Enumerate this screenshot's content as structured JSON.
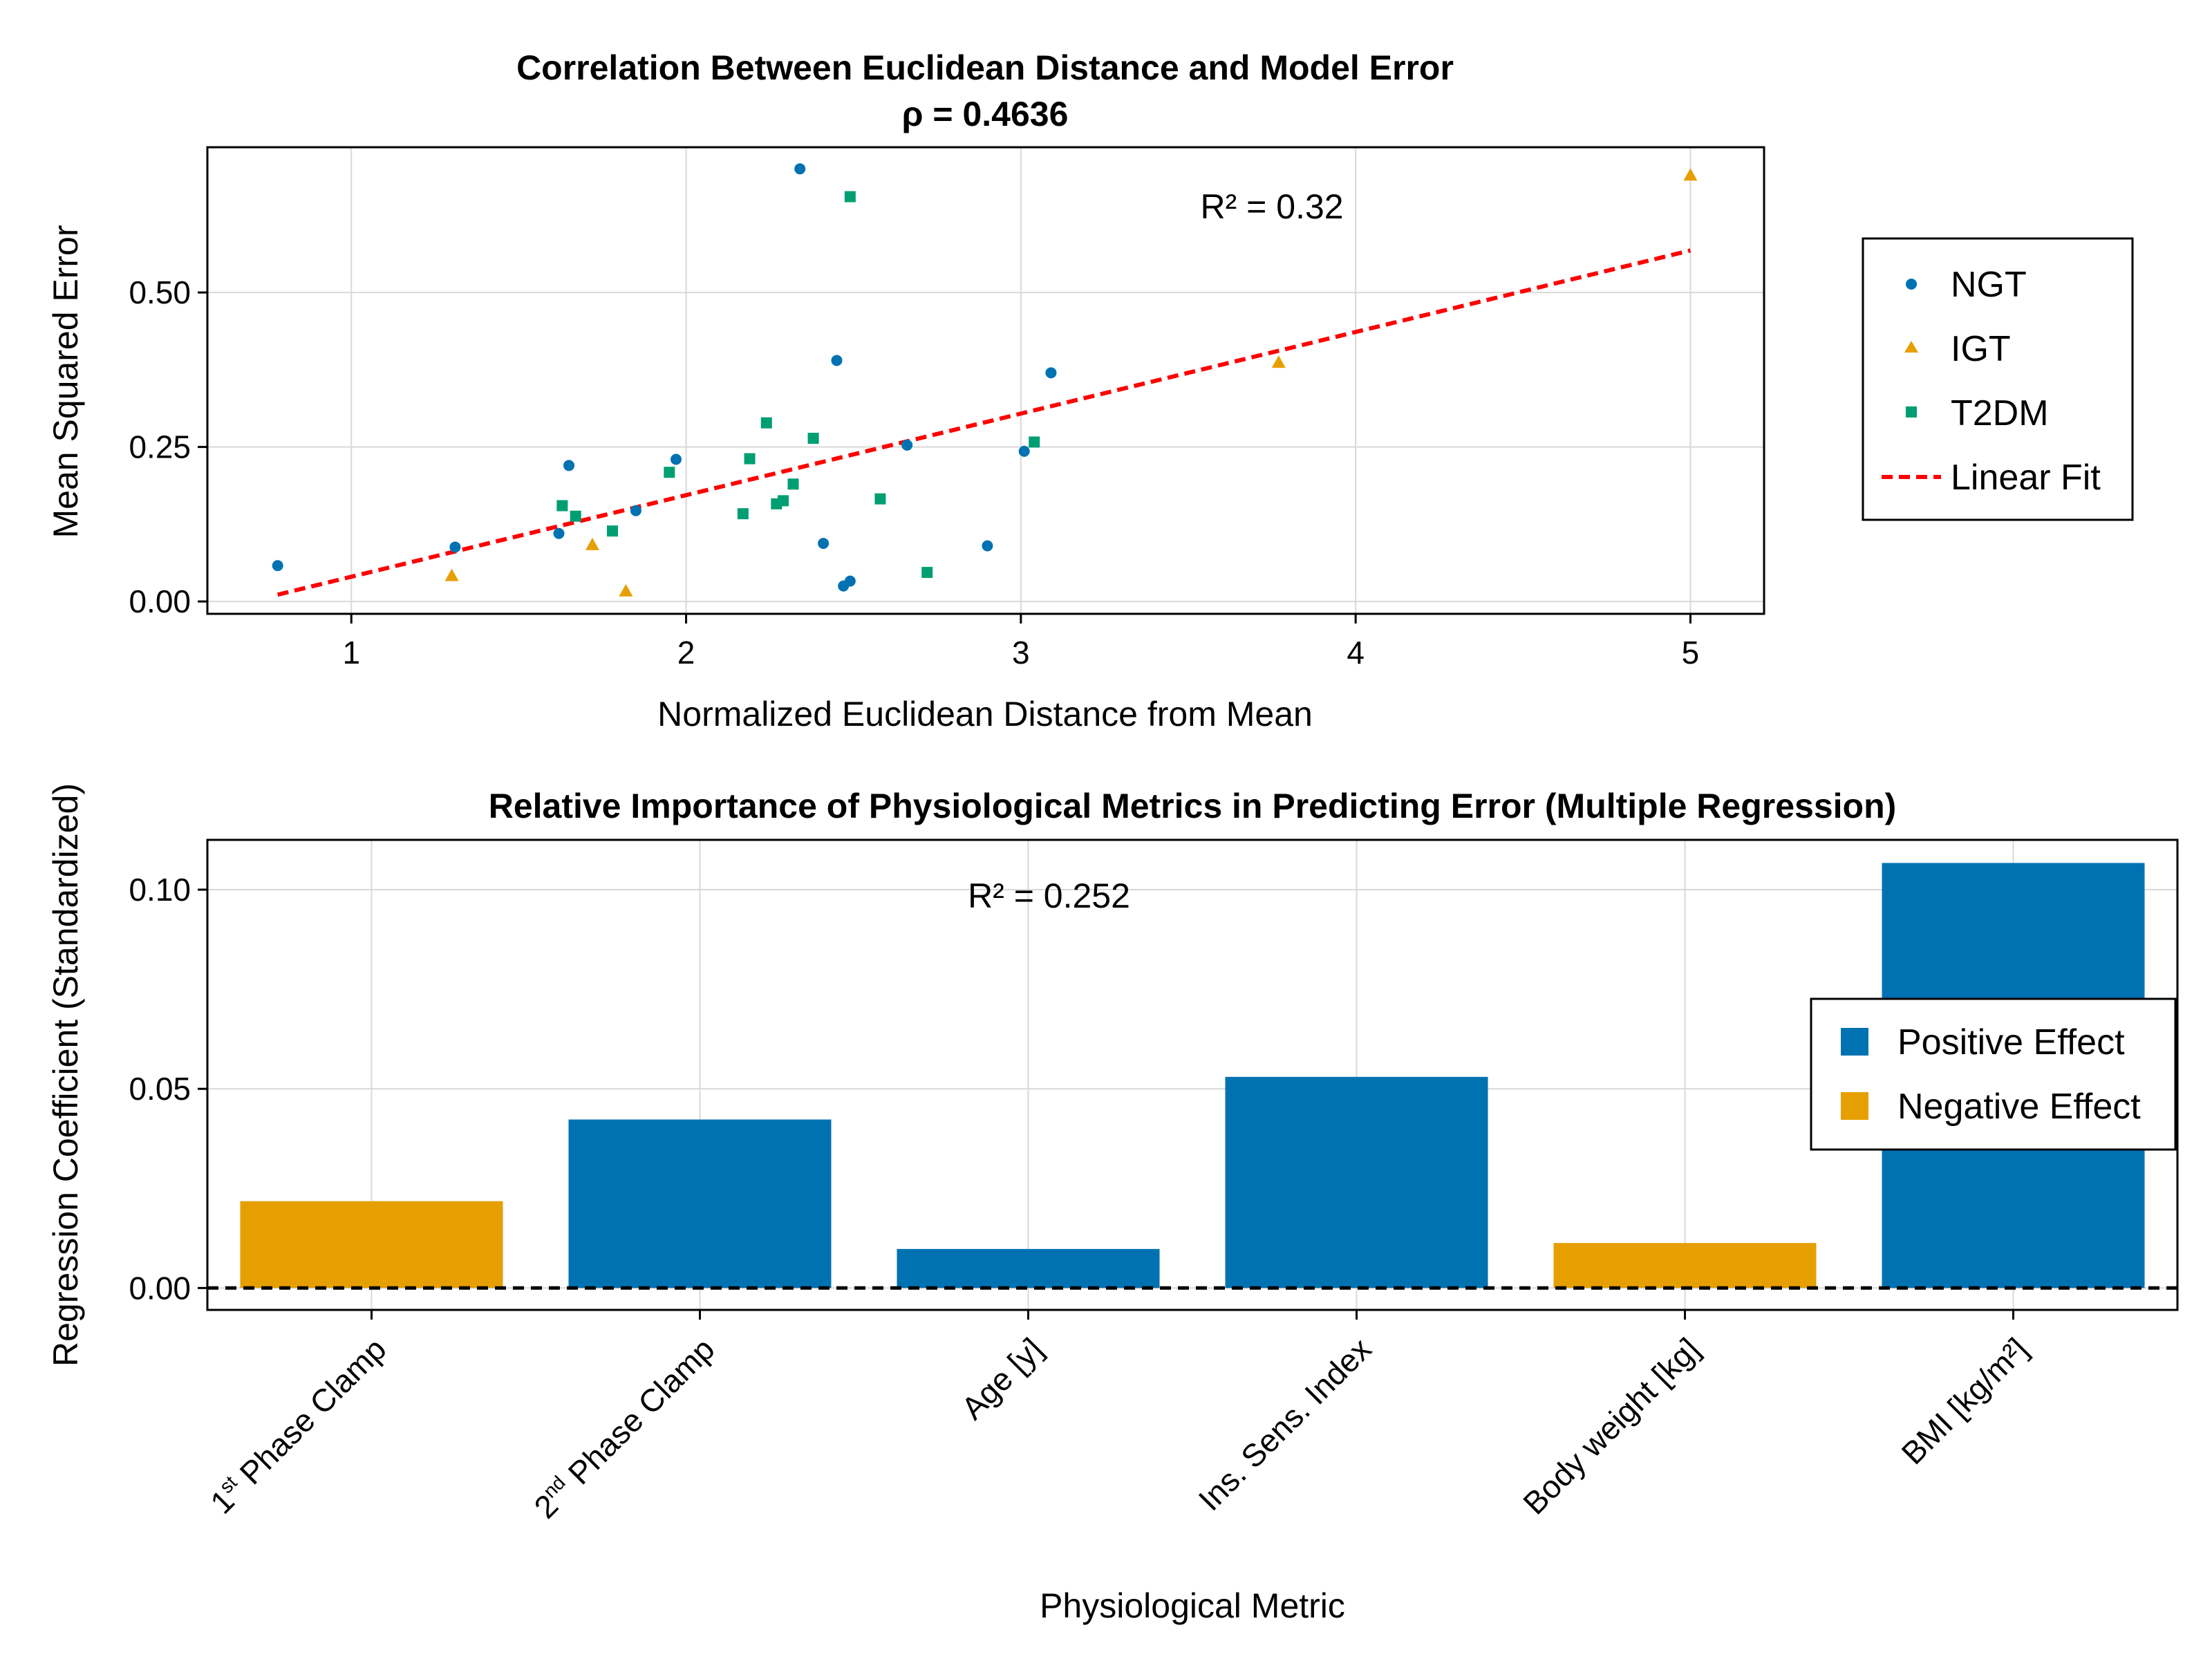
{
  "chart_data": [
    {
      "type": "scatter",
      "title": "Correlation Between Euclidean Distance and Model Error",
      "subtitle": "ρ = 0.4636",
      "xlabel": "Normalized Euclidean Distance from Mean",
      "ylabel": "Mean Squared Error",
      "xlim": [
        0.57,
        5.22
      ],
      "ylim": [
        -0.02,
        0.735
      ],
      "xticks": [
        1,
        2,
        3,
        4,
        5
      ],
      "xtick_labels": [
        "1",
        "2",
        "3",
        "4",
        "5"
      ],
      "yticks": [
        0,
        0.25,
        0.5
      ],
      "ytick_labels": [
        "0.00",
        "0.25",
        "0.50"
      ],
      "grid": true,
      "legend_position": "right",
      "annotation": "R² = 0.32",
      "annotation_pos": {
        "x": 3.75,
        "y": 0.62
      },
      "series": [
        {
          "name": "NGT",
          "marker": "circle",
          "color": "#0072b2",
          "x": [
            0.78,
            1.31,
            1.62,
            1.65,
            1.85,
            1.97,
            2.34,
            2.41,
            2.45,
            2.47,
            2.49,
            2.66,
            2.9,
            3.01,
            3.09
          ],
          "y": [
            0.058,
            0.088,
            0.11,
            0.22,
            0.147,
            0.23,
            0.7,
            0.094,
            0.39,
            0.025,
            0.033,
            0.253,
            0.09,
            0.243,
            0.37
          ]
        },
        {
          "name": "IGT",
          "marker": "triangle",
          "color": "#e69f00",
          "x": [
            1.3,
            1.72,
            1.82,
            3.77,
            5.0
          ],
          "y": [
            0.042,
            0.092,
            0.017,
            0.387,
            0.69
          ]
        },
        {
          "name": "T2DM",
          "marker": "square",
          "color": "#009e73",
          "x": [
            1.63,
            1.67,
            1.78,
            1.95,
            2.17,
            2.19,
            2.24,
            2.27,
            2.29,
            2.32,
            2.38,
            2.49,
            2.58,
            2.72,
            3.04
          ],
          "y": [
            0.155,
            0.138,
            0.114,
            0.209,
            0.142,
            0.231,
            0.289,
            0.158,
            0.163,
            0.19,
            0.264,
            0.655,
            0.166,
            0.047,
            0.258
          ]
        }
      ],
      "fit": {
        "name": "Linear Fit",
        "color": "#ff0000",
        "x": [
          0.78,
          5.0
        ],
        "y": [
          0.011,
          0.568
        ]
      }
    },
    {
      "type": "bar",
      "title": "Relative Importance of Physiological Metrics in Predicting Error (Multiple Regression)",
      "xlabel": "Physiological Metric",
      "ylabel": "Regression Coefficient (Standardized)",
      "ylim": [
        -0.0055,
        0.1125
      ],
      "yticks": [
        0,
        0.05,
        0.1
      ],
      "ytick_labels": [
        "0.00",
        "0.05",
        "0.10"
      ],
      "grid": true,
      "legend_position": "right",
      "annotation": "R² = 0.252",
      "annotation_pos": {
        "x": 2.0,
        "y": 0.0955
      },
      "categories": [
        {
          "main": "1",
          "sup": "st",
          "rest": " Phase Clamp"
        },
        {
          "main": "2",
          "sup": "nd",
          "rest": " Phase Clamp"
        },
        {
          "main": "Age [y]",
          "sup": "",
          "rest": ""
        },
        {
          "main": "Ins. Sens. Index",
          "sup": "",
          "rest": ""
        },
        {
          "main": "Body weight [kg]",
          "sup": "",
          "rest": ""
        },
        {
          "main": "BMI [kg/m²]",
          "sup": "",
          "rest": ""
        }
      ],
      "values": [
        0.0218,
        0.0423,
        0.0098,
        0.053,
        0.0113,
        0.1067
      ],
      "effects": [
        "negative",
        "positive",
        "positive",
        "positive",
        "negative",
        "positive"
      ],
      "legend": [
        {
          "name": "Positive Effect",
          "color": "#0072b2"
        },
        {
          "name": "Negative Effect",
          "color": "#e69f00"
        }
      ]
    }
  ]
}
